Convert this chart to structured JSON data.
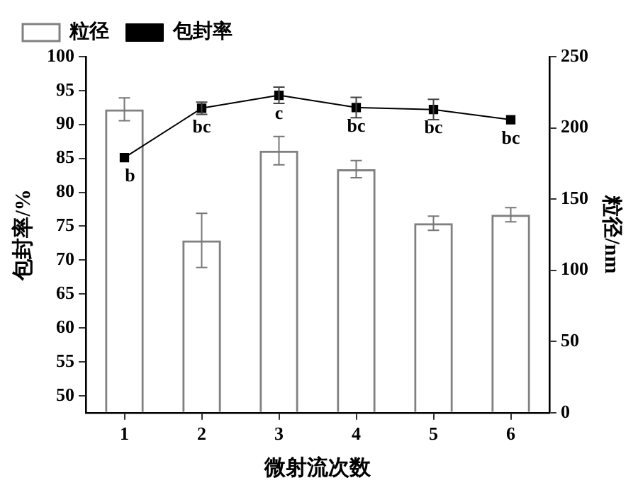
{
  "chart_data": {
    "type": "bar",
    "xlabel": "微射流次数",
    "ylabel": "包封率/%",
    "y2label": "粒径/nm",
    "categories": [
      "1",
      "2",
      "3",
      "4",
      "5",
      "6"
    ],
    "series": [
      {
        "name": "粒径",
        "axis": "y2",
        "color": "#808080",
        "values": [
          213,
          121,
          184,
          171,
          133,
          139
        ],
        "errors": [
          8,
          19,
          10,
          6,
          5,
          5
        ]
      },
      {
        "name": "包封率",
        "type": "line",
        "color": "#000000",
        "values": [
          85.1,
          92.4,
          94.3,
          92.5,
          92.2,
          90.7
        ],
        "errors": [
          null,
          0.9,
          1.2,
          1.5,
          1.5,
          null
        ]
      }
    ],
    "ylim": [
      47.5,
      100
    ],
    "yticks": [
      50,
      55,
      60,
      65,
      70,
      75,
      80,
      85,
      90,
      95,
      100
    ],
    "y2lim": [
      0,
      250
    ],
    "y2ticks": [
      0,
      50,
      100,
      150,
      200,
      250
    ],
    "annotations": [
      "b",
      "bc",
      "c",
      "bc",
      "bc",
      "bc"
    ],
    "grid": false,
    "legend": "top left",
    "marker": "square",
    "line_style": "solid"
  }
}
